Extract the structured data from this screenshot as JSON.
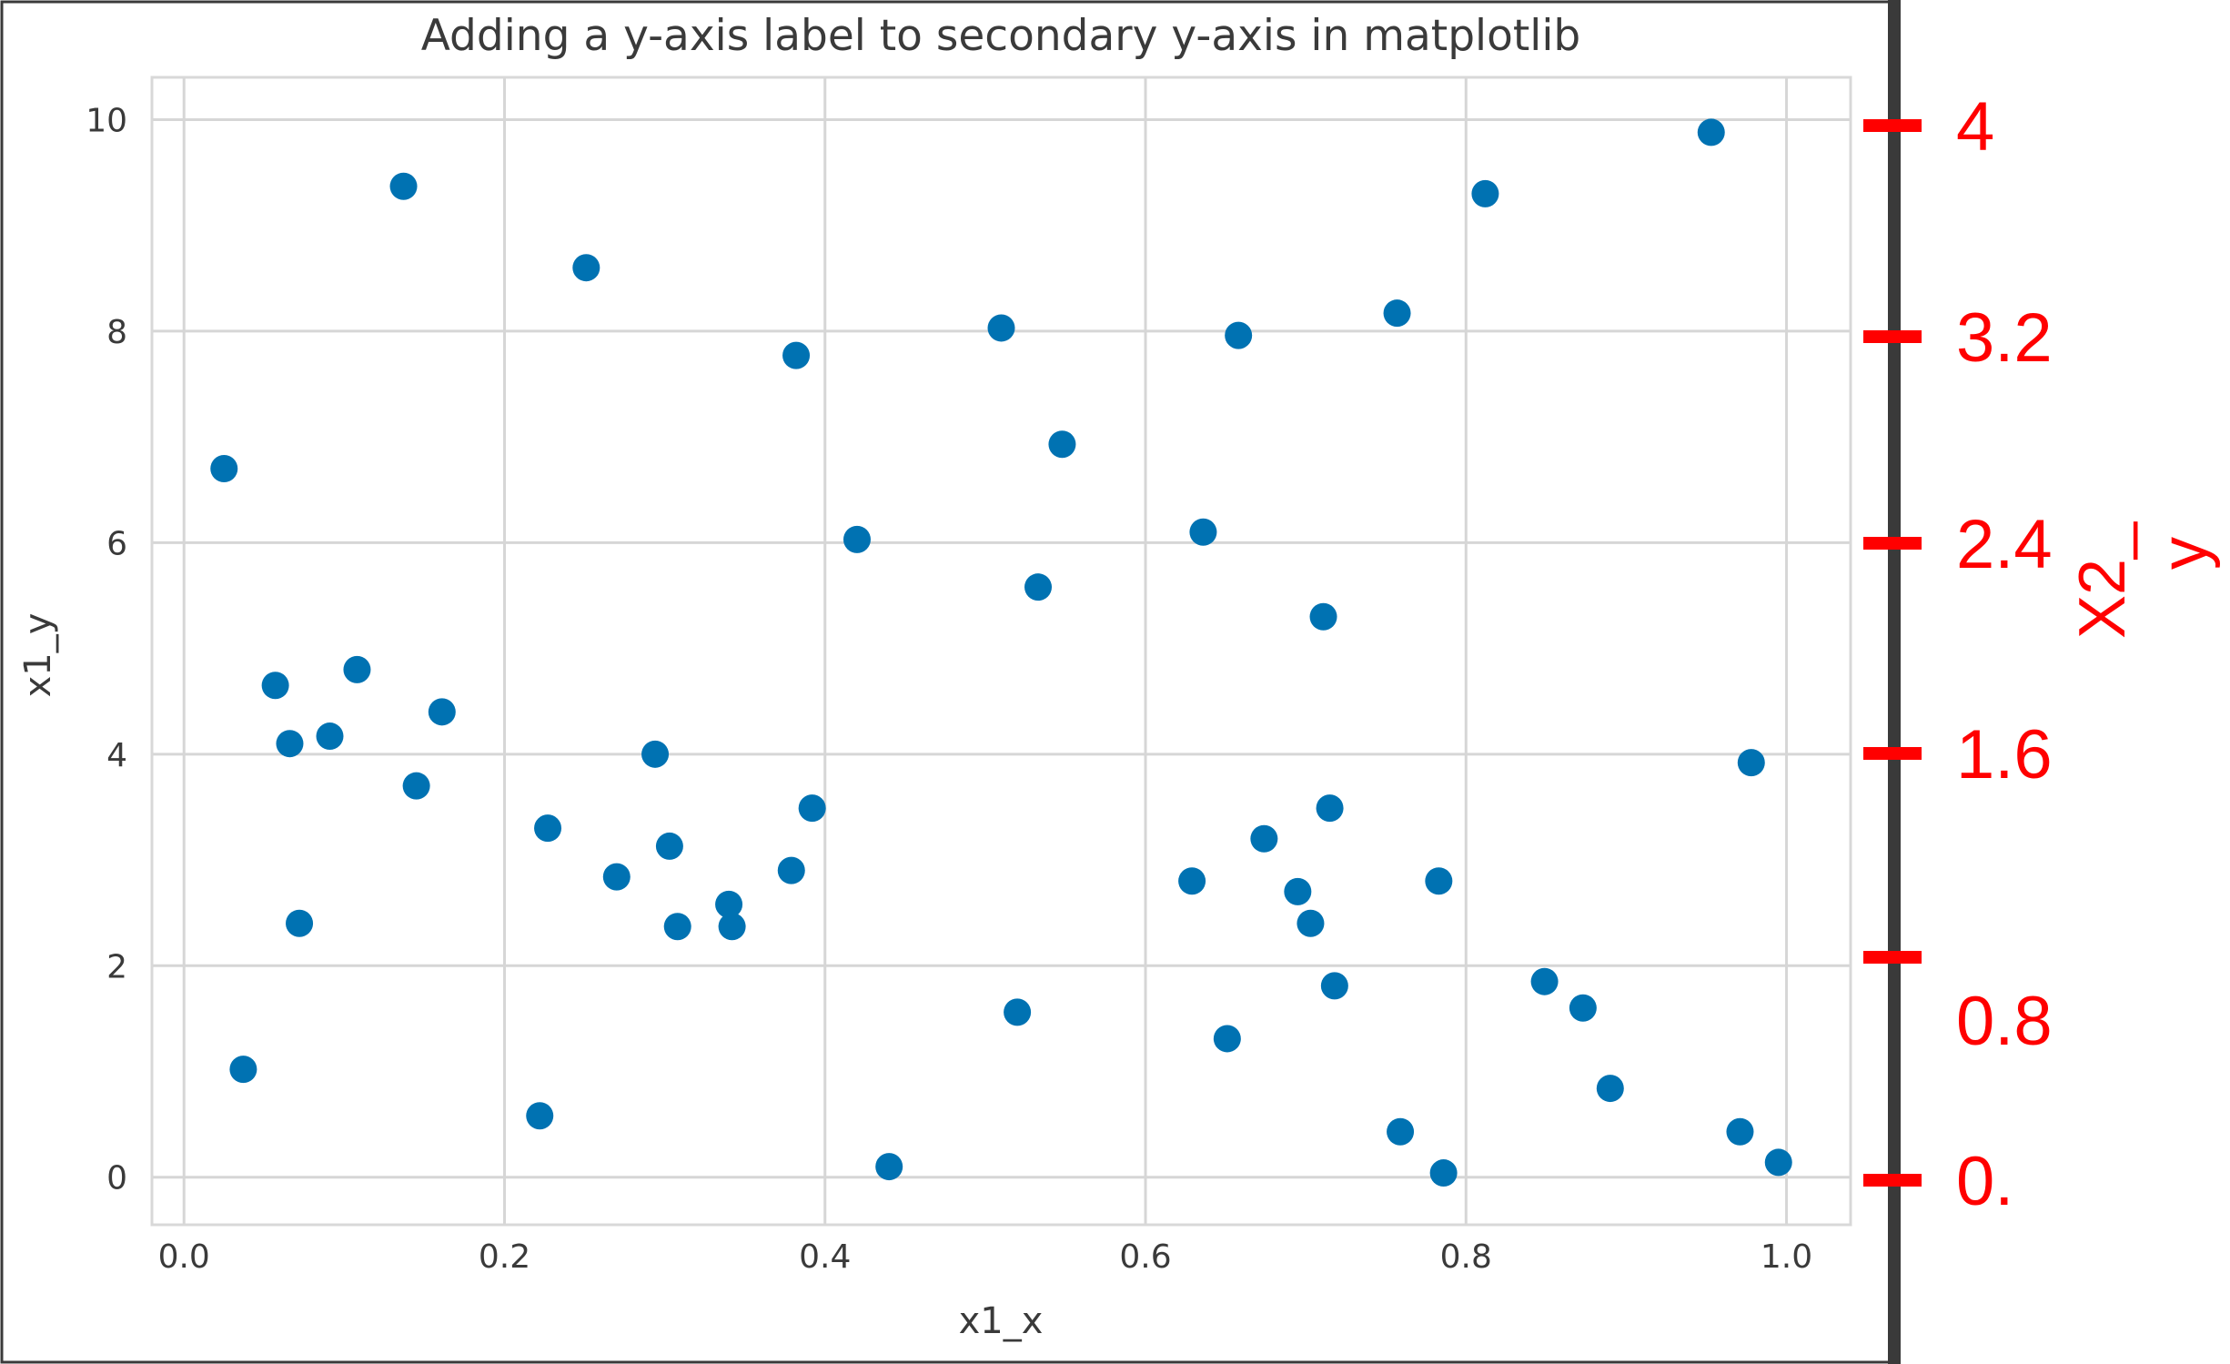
{
  "chart_data": {
    "type": "scatter",
    "title": "Adding a y-axis label to secondary y-axis in matplotlib",
    "xlabel": "x1_x",
    "ylabel": "x1_y",
    "xlim": [
      -0.02,
      1.04
    ],
    "ylim": [
      -0.45,
      10.4
    ],
    "x_ticks": [
      "0.0",
      "0.2",
      "0.4",
      "0.6",
      "0.8",
      "1.0"
    ],
    "y_ticks": [
      "0",
      "2",
      "4",
      "6",
      "8",
      "10"
    ],
    "grid": true,
    "marker_color": "#0072b2",
    "series": [
      {
        "x": [
          0.025,
          0.037,
          0.057,
          0.066,
          0.072,
          0.091,
          0.108,
          0.137,
          0.145,
          0.161,
          0.222,
          0.227,
          0.251,
          0.27,
          0.294,
          0.303,
          0.308,
          0.34,
          0.342,
          0.379,
          0.382,
          0.392,
          0.42,
          0.44,
          0.51,
          0.52,
          0.533,
          0.548,
          0.629,
          0.636,
          0.651,
          0.658,
          0.674,
          0.695,
          0.703,
          0.711,
          0.715,
          0.718,
          0.757,
          0.759,
          0.783,
          0.786,
          0.812,
          0.849,
          0.873,
          0.89,
          0.953,
          0.971,
          0.978,
          0.995
        ],
        "y": [
          6.7,
          1.02,
          4.65,
          4.1,
          2.4,
          4.17,
          4.8,
          9.37,
          3.7,
          4.4,
          0.58,
          3.3,
          8.6,
          2.84,
          4.0,
          3.13,
          2.37,
          2.58,
          2.37,
          2.9,
          7.77,
          3.49,
          6.03,
          0.1,
          8.03,
          1.56,
          5.58,
          6.93,
          2.8,
          6.1,
          1.31,
          7.96,
          3.2,
          2.7,
          2.4,
          5.3,
          3.49,
          1.81,
          8.17,
          0.43,
          2.8,
          0.04,
          9.3,
          1.85,
          1.6,
          0.84,
          9.88,
          0.43,
          3.92,
          0.14
        ]
      }
    ],
    "secondary_axis": {
      "label": "X2_\ny",
      "ticks": [
        "4",
        "3.2",
        "2.4",
        "1.6",
        "0.8",
        "0."
      ],
      "color": "#ff0000"
    }
  }
}
